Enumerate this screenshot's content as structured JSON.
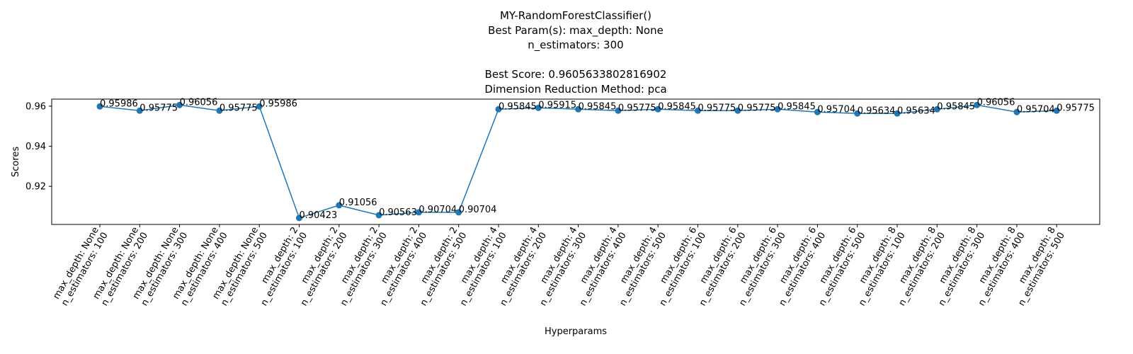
{
  "chart_data": {
    "type": "line",
    "title_lines": [
      "MY-RandomForestClassifier()",
      "Best Param(s): max_depth: None",
      "n_estimators: 300",
      "",
      "Best Score: 0.9605633802816902",
      "Dimension Reduction Method: pca"
    ],
    "xlabel": "Hyperparams",
    "ylabel": "Scores",
    "ylim": [
      0.901,
      0.9635
    ],
    "yticks": [
      "0.92",
      "0.94",
      "0.96"
    ],
    "grid": false,
    "line_color": "#1f77b4",
    "categories": [
      [
        "max_depth: None",
        "n_estimators: 100"
      ],
      [
        "max_depth: None",
        "n_estimators: 200"
      ],
      [
        "max_depth: None",
        "n_estimators: 300"
      ],
      [
        "max_depth: None",
        "n_estimators: 400"
      ],
      [
        "max_depth: None",
        "n_estimators: 500"
      ],
      [
        "max_depth: 2",
        "n_estimators: 100"
      ],
      [
        "max_depth: 2",
        "n_estimators: 200"
      ],
      [
        "max_depth: 2",
        "n_estimators: 300"
      ],
      [
        "max_depth: 2",
        "n_estimators: 400"
      ],
      [
        "max_depth: 2",
        "n_estimators: 500"
      ],
      [
        "max_depth: 4",
        "n_estimators: 100"
      ],
      [
        "max_depth: 4",
        "n_estimators: 200"
      ],
      [
        "max_depth: 4",
        "n_estimators: 300"
      ],
      [
        "max_depth: 4",
        "n_estimators: 400"
      ],
      [
        "max_depth: 4",
        "n_estimators: 500"
      ],
      [
        "max_depth: 6",
        "n_estimators: 100"
      ],
      [
        "max_depth: 6",
        "n_estimators: 200"
      ],
      [
        "max_depth: 6",
        "n_estimators: 300"
      ],
      [
        "max_depth: 6",
        "n_estimators: 400"
      ],
      [
        "max_depth: 6",
        "n_estimators: 500"
      ],
      [
        "max_depth: 8",
        "n_estimators: 100"
      ],
      [
        "max_depth: 8",
        "n_estimators: 200"
      ],
      [
        "max_depth: 8",
        "n_estimators: 300"
      ],
      [
        "max_depth: 8",
        "n_estimators: 400"
      ],
      [
        "max_depth: 8",
        "n_estimators: 500"
      ]
    ],
    "values": [
      0.95986,
      0.95775,
      0.96056,
      0.95775,
      0.95986,
      0.90423,
      0.91056,
      0.90563,
      0.90704,
      0.90704,
      0.95845,
      0.95915,
      0.95845,
      0.95775,
      0.95845,
      0.95775,
      0.95775,
      0.95845,
      0.95704,
      0.95634,
      0.95634,
      0.95845,
      0.96056,
      0.95704,
      0.95775
    ],
    "data_labels": [
      "0.95986",
      "0.95775",
      "0.96056",
      "0.95775",
      "0.95986",
      "0.90423",
      "0.91056",
      "0.90563",
      "0.90704",
      "0.90704",
      "0.95845",
      "0.95915",
      "0.95845",
      "0.95775",
      "0.95845",
      "0.95775",
      "0.95775",
      "0.95845",
      "0.95704",
      "0.95634",
      "0.95634",
      "0.95845",
      "0.96056",
      "0.95704",
      "0.95775"
    ]
  }
}
